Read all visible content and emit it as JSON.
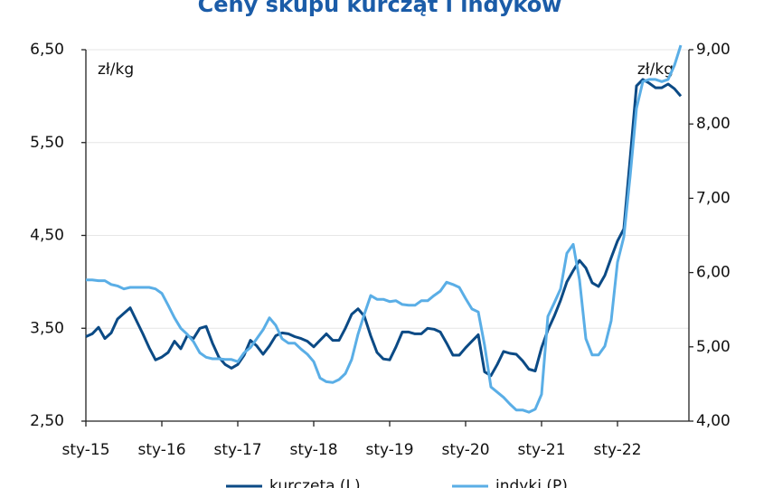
{
  "chart_data": {
    "type": "line",
    "title": "Ceny skupu kurcząt i indyków",
    "left_unit": "zł/kg",
    "right_unit": "zł/kg",
    "categories": [
      "sty-15",
      null,
      null,
      null,
      null,
      null,
      null,
      null,
      null,
      null,
      null,
      null,
      "sty-16",
      null,
      null,
      null,
      null,
      null,
      null,
      null,
      null,
      null,
      null,
      null,
      "sty-17",
      null,
      null,
      null,
      null,
      null,
      null,
      null,
      null,
      null,
      null,
      null,
      "sty-18",
      null,
      null,
      null,
      null,
      null,
      null,
      null,
      null,
      null,
      null,
      null,
      "sty-19",
      null,
      null,
      null,
      null,
      null,
      null,
      null,
      null,
      null,
      null,
      null,
      "sty-20",
      null,
      null,
      null,
      null,
      null,
      null,
      null,
      null,
      null,
      null,
      null,
      "sty-21",
      null,
      null,
      null,
      null,
      null,
      null,
      null,
      null,
      null,
      null,
      null,
      "sty-22",
      null,
      null,
      null,
      null,
      null,
      null,
      null,
      null,
      null,
      null
    ],
    "series": [
      {
        "name": "kurczęta (L)",
        "color": "#0b4a85",
        "axis": "y",
        "values": [
          3.41,
          3.44,
          3.51,
          3.39,
          3.45,
          3.6,
          3.66,
          3.72,
          3.58,
          3.44,
          3.29,
          3.16,
          3.19,
          3.24,
          3.36,
          3.28,
          3.42,
          3.39,
          3.5,
          3.52,
          3.34,
          3.19,
          3.11,
          3.07,
          3.11,
          3.21,
          3.37,
          3.31,
          3.22,
          3.31,
          3.42,
          3.45,
          3.44,
          3.41,
          3.39,
          3.36,
          3.3,
          3.37,
          3.44,
          3.37,
          3.37,
          3.5,
          3.65,
          3.71,
          3.63,
          3.42,
          3.24,
          3.17,
          3.16,
          3.3,
          3.46,
          3.46,
          3.44,
          3.44,
          3.5,
          3.49,
          3.46,
          3.34,
          3.21,
          3.21,
          3.29,
          3.36,
          3.43,
          3.03,
          2.99,
          3.11,
          3.25,
          3.23,
          3.22,
          3.15,
          3.06,
          3.04,
          3.29,
          3.48,
          3.63,
          3.8,
          4.0,
          4.12,
          4.23,
          4.15,
          3.99,
          3.95,
          4.07,
          4.26,
          4.44,
          4.57,
          5.33,
          6.11,
          6.18,
          6.14,
          6.09,
          6.09,
          6.13,
          6.08,
          6.0
        ]
      },
      {
        "name": "indyki (P)",
        "color": "#5aaee6",
        "axis": "y2",
        "values": [
          5.9,
          5.9,
          5.89,
          5.89,
          5.84,
          5.82,
          5.78,
          5.8,
          5.8,
          5.8,
          5.8,
          5.78,
          5.72,
          5.56,
          5.39,
          5.25,
          5.17,
          5.07,
          4.92,
          4.86,
          4.84,
          4.84,
          4.83,
          4.83,
          4.8,
          4.92,
          4.99,
          5.11,
          5.23,
          5.39,
          5.29,
          5.11,
          5.05,
          5.05,
          4.97,
          4.9,
          4.8,
          4.58,
          4.53,
          4.52,
          4.56,
          4.64,
          4.83,
          5.17,
          5.44,
          5.69,
          5.64,
          5.64,
          5.61,
          5.62,
          5.57,
          5.56,
          5.56,
          5.62,
          5.62,
          5.69,
          5.75,
          5.87,
          5.84,
          5.8,
          5.65,
          5.51,
          5.47,
          5.02,
          4.46,
          4.39,
          4.32,
          4.23,
          4.15,
          4.15,
          4.12,
          4.16,
          4.36,
          5.41,
          5.59,
          5.78,
          6.26,
          6.38,
          5.9,
          5.11,
          4.89,
          4.89,
          5.01,
          5.35,
          6.14,
          6.48,
          7.3,
          8.21,
          8.57,
          8.6,
          8.6,
          8.57,
          8.6,
          8.79,
          9.06
        ]
      }
    ],
    "ylim": [
      2.5,
      6.5
    ],
    "yticks": [
      {
        "value": 2.5,
        "label": "2,50"
      },
      {
        "value": 3.5,
        "label": "3,50"
      },
      {
        "value": 4.5,
        "label": "4,50"
      },
      {
        "value": 5.5,
        "label": "5,50"
      },
      {
        "value": 6.5,
        "label": "6,50"
      }
    ],
    "y2lim": [
      4,
      9
    ],
    "y2ticks": [
      {
        "value": 4,
        "label": "4,00"
      },
      {
        "value": 5,
        "label": "5,00"
      },
      {
        "value": 6,
        "label": "6,00"
      },
      {
        "value": 7,
        "label": "7,00"
      },
      {
        "value": 8,
        "label": "8,00"
      },
      {
        "value": 9,
        "label": "9,00"
      }
    ],
    "grid": true
  }
}
